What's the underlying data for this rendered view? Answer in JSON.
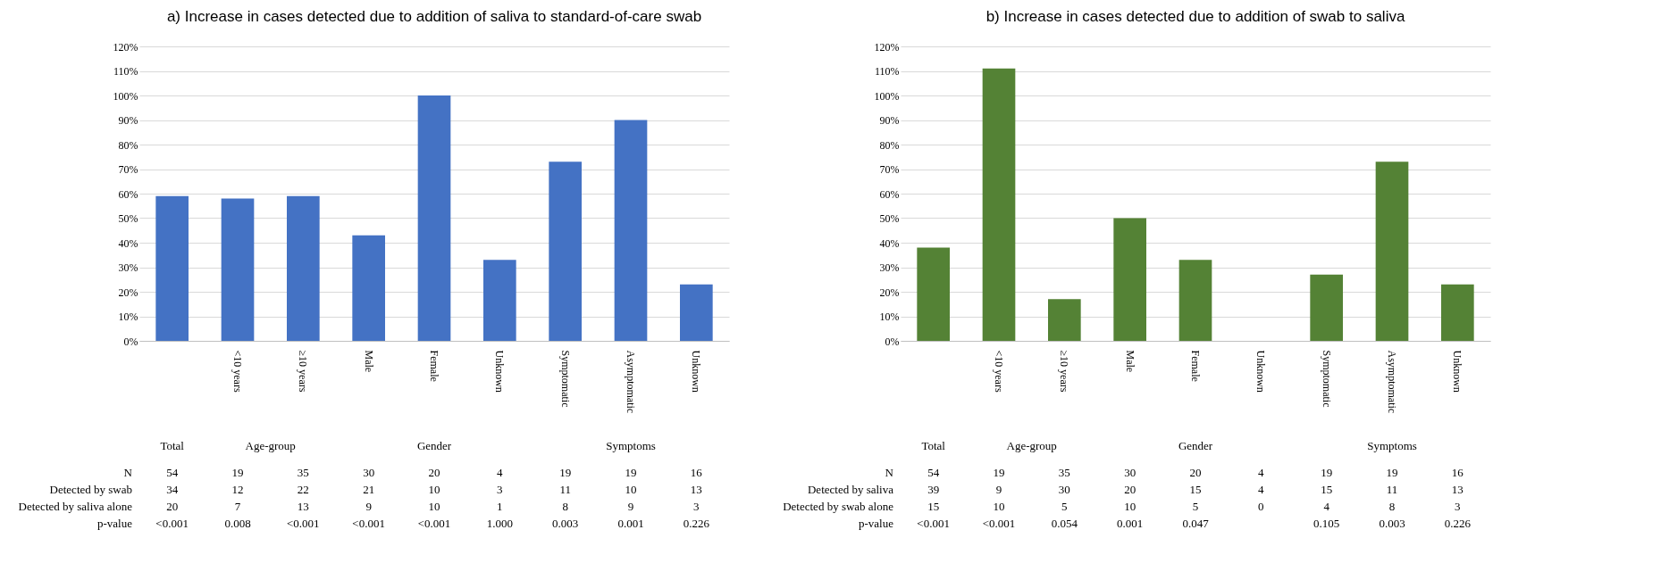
{
  "chart_data": [
    {
      "type": "bar",
      "title": "a) Increase in cases detected due to addition of saliva to standard-of-care swab",
      "categories": [
        null,
        "<10 years",
        "≥10 years",
        "Male",
        "Female",
        "Unknown",
        "Symptomatic",
        "Asymptomatic",
        "Unknown"
      ],
      "values": [
        59,
        58,
        59,
        43,
        100,
        33,
        73,
        90,
        23
      ],
      "color": "#4472c4",
      "ylim": [
        0,
        120
      ],
      "yticks": [
        {
          "value": 0,
          "label": "0%"
        },
        {
          "value": 10,
          "label": "10%"
        },
        {
          "value": 20,
          "label": "20%"
        },
        {
          "value": 30,
          "label": "30%"
        },
        {
          "value": 40,
          "label": "40%"
        },
        {
          "value": 50,
          "label": "50%"
        },
        {
          "value": 60,
          "label": "60%"
        },
        {
          "value": 70,
          "label": "70%"
        },
        {
          "value": 80,
          "label": "80%"
        },
        {
          "value": 90,
          "label": "90%"
        },
        {
          "value": 100,
          "label": "100%"
        },
        {
          "value": 110,
          "label": "110%"
        },
        {
          "value": 120,
          "label": "120%"
        }
      ],
      "grid": "y",
      "annotations": [
        "Total",
        "Age-group",
        "Gender",
        "Symptoms",
        "N",
        "54",
        "19",
        "35",
        "30",
        "20",
        "4",
        "19",
        "19",
        "16",
        "Detected by swab",
        "34",
        "12",
        "22",
        "21",
        "10",
        "3",
        "11",
        "10",
        "13",
        "Detected by saliva alone",
        "20",
        "7",
        "13",
        "9",
        "10",
        "1",
        "8",
        "9",
        "3",
        "p-value",
        "<0.001",
        "0.008",
        "<0.001",
        "<0.001",
        "<0.001",
        "1.000",
        "0.003",
        "0.001",
        "0.226"
      ]
    },
    {
      "type": "bar",
      "title": "b) Increase in cases detected due to addition of swab to saliva",
      "categories": [
        null,
        "<10 years",
        "≥10 years",
        "Male",
        "Female",
        "Unknown",
        "Symptomatic",
        "Asymptomatic",
        "Unknown"
      ],
      "values": [
        38,
        111,
        17,
        50,
        33,
        0,
        27,
        73,
        23
      ],
      "color": "#548235",
      "ylim": [
        0,
        120
      ],
      "yticks": [
        {
          "value": 0,
          "label": "0%"
        },
        {
          "value": 10,
          "label": "10%"
        },
        {
          "value": 20,
          "label": "20%"
        },
        {
          "value": 30,
          "label": "30%"
        },
        {
          "value": 40,
          "label": "40%"
        },
        {
          "value": 50,
          "label": "50%"
        },
        {
          "value": 60,
          "label": "60%"
        },
        {
          "value": 70,
          "label": "70%"
        },
        {
          "value": 80,
          "label": "80%"
        },
        {
          "value": 90,
          "label": "90%"
        },
        {
          "value": 100,
          "label": "100%"
        },
        {
          "value": 110,
          "label": "110%"
        },
        {
          "value": 120,
          "label": "120%"
        }
      ],
      "grid": "y",
      "annotations": [
        "Total",
        "Age-group",
        "Gender",
        "Symptoms",
        "N",
        "54",
        "19",
        "35",
        "30",
        "20",
        "4",
        "19",
        "19",
        "16",
        "Detected by saliva",
        "39",
        "9",
        "30",
        "20",
        "15",
        "4",
        "15",
        "11",
        "13",
        "Detected by swab alone",
        "15",
        "10",
        "5",
        "10",
        "5",
        "0",
        "4",
        "8",
        "3",
        "p-value",
        "<0.001",
        "<0.001",
        "0.054",
        "0.001",
        "0.047",
        null,
        "0.105",
        "0.003",
        "0.226"
      ]
    }
  ]
}
